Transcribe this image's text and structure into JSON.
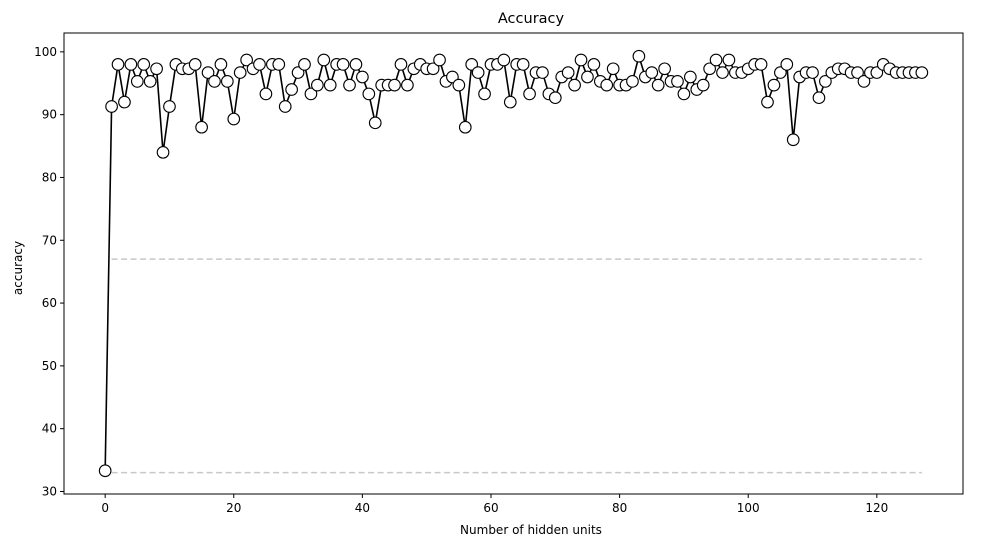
{
  "chart_data": {
    "type": "line",
    "title": "Accuracy",
    "xlabel": "Number of hidden units",
    "ylabel": "accuracy",
    "xlim": [
      -6.4,
      133.4
    ],
    "ylim": [
      29.6,
      103.0
    ],
    "xticks": [
      0,
      20,
      40,
      60,
      80,
      100,
      120
    ],
    "yticks": [
      30,
      40,
      50,
      60,
      70,
      80,
      90,
      100
    ],
    "grid": false,
    "line_color": "#000000",
    "marker_face": "#ffffff",
    "marker_edge": "#000000",
    "reference_color": "#c8c8c8",
    "reference_lines": [
      {
        "y": 67.0,
        "x": [
          1,
          127
        ]
      },
      {
        "y": 33.0,
        "x": [
          1,
          127
        ]
      }
    ],
    "x": [
      0,
      1,
      2,
      3,
      4,
      5,
      6,
      7,
      8,
      9,
      10,
      11,
      12,
      13,
      14,
      15,
      16,
      17,
      18,
      19,
      20,
      21,
      22,
      23,
      24,
      25,
      26,
      27,
      28,
      29,
      30,
      31,
      32,
      33,
      34,
      35,
      36,
      37,
      38,
      39,
      40,
      41,
      42,
      43,
      44,
      45,
      46,
      47,
      48,
      49,
      50,
      51,
      52,
      53,
      54,
      55,
      56,
      57,
      58,
      59,
      60,
      61,
      62,
      63,
      64,
      65,
      66,
      67,
      68,
      69,
      70,
      71,
      72,
      73,
      74,
      75,
      76,
      77,
      78,
      79,
      80,
      81,
      82,
      83,
      84,
      85,
      86,
      87,
      88,
      89,
      90,
      91,
      92,
      93,
      94,
      95,
      96,
      97,
      98,
      99,
      100,
      101,
      102,
      103,
      104,
      105,
      106,
      107,
      108,
      109,
      110,
      111,
      112,
      113,
      114,
      115,
      116,
      117,
      118,
      119,
      120,
      121,
      122,
      123,
      124,
      125,
      126,
      127
    ],
    "y": [
      33.3,
      91.3,
      98.0,
      92.0,
      98.0,
      95.3,
      98.0,
      95.3,
      97.3,
      84.0,
      91.3,
      98.0,
      97.3,
      97.3,
      98.0,
      88.0,
      96.7,
      95.3,
      98.0,
      95.3,
      89.3,
      96.7,
      98.7,
      97.3,
      98.0,
      93.3,
      98.0,
      98.0,
      91.3,
      94.0,
      96.7,
      98.0,
      93.3,
      94.7,
      98.7,
      94.7,
      98.0,
      98.0,
      94.7,
      98.0,
      96.0,
      93.3,
      88.7,
      94.7,
      94.7,
      94.7,
      98.0,
      94.7,
      97.3,
      98.0,
      97.3,
      97.3,
      98.7,
      95.3,
      96.0,
      94.7,
      88.0,
      98.0,
      96.7,
      93.3,
      98.0,
      98.0,
      98.7,
      92.0,
      98.0,
      98.0,
      93.3,
      96.7,
      96.7,
      93.3,
      92.7,
      96.0,
      96.7,
      94.7,
      98.7,
      96.0,
      98.0,
      95.3,
      94.7,
      97.3,
      94.7,
      94.7,
      95.3,
      99.3,
      96.0,
      96.7,
      94.7,
      97.3,
      95.3,
      95.3,
      93.3,
      96.0,
      94.0,
      94.7,
      97.3,
      98.7,
      96.7,
      98.7,
      96.7,
      96.7,
      97.3,
      98.0,
      98.0,
      92.0,
      94.7,
      96.7,
      98.0,
      86.0,
      96.0,
      96.7,
      96.7,
      92.7,
      95.3,
      96.7,
      97.3,
      97.3,
      96.7,
      96.7,
      95.3,
      96.7,
      96.7,
      98.0,
      97.3,
      96.7,
      96.7,
      96.7,
      96.7,
      96.7
    ]
  }
}
